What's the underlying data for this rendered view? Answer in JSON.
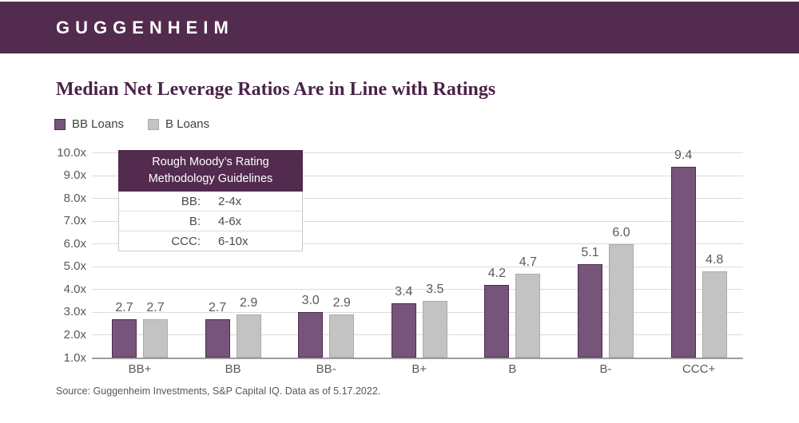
{
  "header": {
    "logo_text": "GUGGENHEIM"
  },
  "title": "Median Net Leverage Ratios Are in Line with Ratings",
  "colors": {
    "brand_band": "#522B4F",
    "title_text": "#4A2349",
    "bb_fill": "#775479",
    "bb_border": "#4E2C50",
    "b_fill": "#C3C3C4",
    "b_border": "#ABABAB",
    "gridline": "#DBDBDB",
    "axis_line": "#9C9C9E",
    "tick_text": "#59595B"
  },
  "chart_data": {
    "type": "bar",
    "title": "Median Net Leverage Ratios Are in Line with Ratings",
    "categories": [
      "BB+",
      "BB",
      "BB-",
      "B+",
      "B",
      "B-",
      "CCC+"
    ],
    "series": [
      {
        "name": "BB Loans",
        "color": "#775479",
        "border": "#4E2C50",
        "values": [
          2.7,
          2.7,
          3.0,
          3.4,
          4.2,
          5.1,
          9.4
        ]
      },
      {
        "name": "B Loans",
        "color": "#C3C3C4",
        "border": "#ABABAB",
        "values": [
          2.7,
          2.9,
          2.9,
          3.5,
          4.7,
          6.0,
          4.8
        ]
      }
    ],
    "xlabel": "",
    "ylabel": "",
    "ylim": [
      1.0,
      10.0
    ],
    "y_ticks": [
      "1.0x",
      "2.0x",
      "3.0x",
      "4.0x",
      "5.0x",
      "6.0x",
      "7.0x",
      "8.0x",
      "9.0x",
      "10.0x"
    ],
    "grid": true,
    "legend_position": "top-left",
    "value_labels": true
  },
  "guidelines": {
    "title_line1": "Rough Moody’s Rating",
    "title_line2": "Methodology Guidelines",
    "rows": [
      {
        "label": "BB:",
        "value": "2-4x"
      },
      {
        "label": "B:",
        "value": "4-6x"
      },
      {
        "label": "CCC:",
        "value": "6-10x"
      }
    ]
  },
  "source": "Source: Guggenheim Investments, S&P Capital IQ. Data as of 5.17.2022."
}
